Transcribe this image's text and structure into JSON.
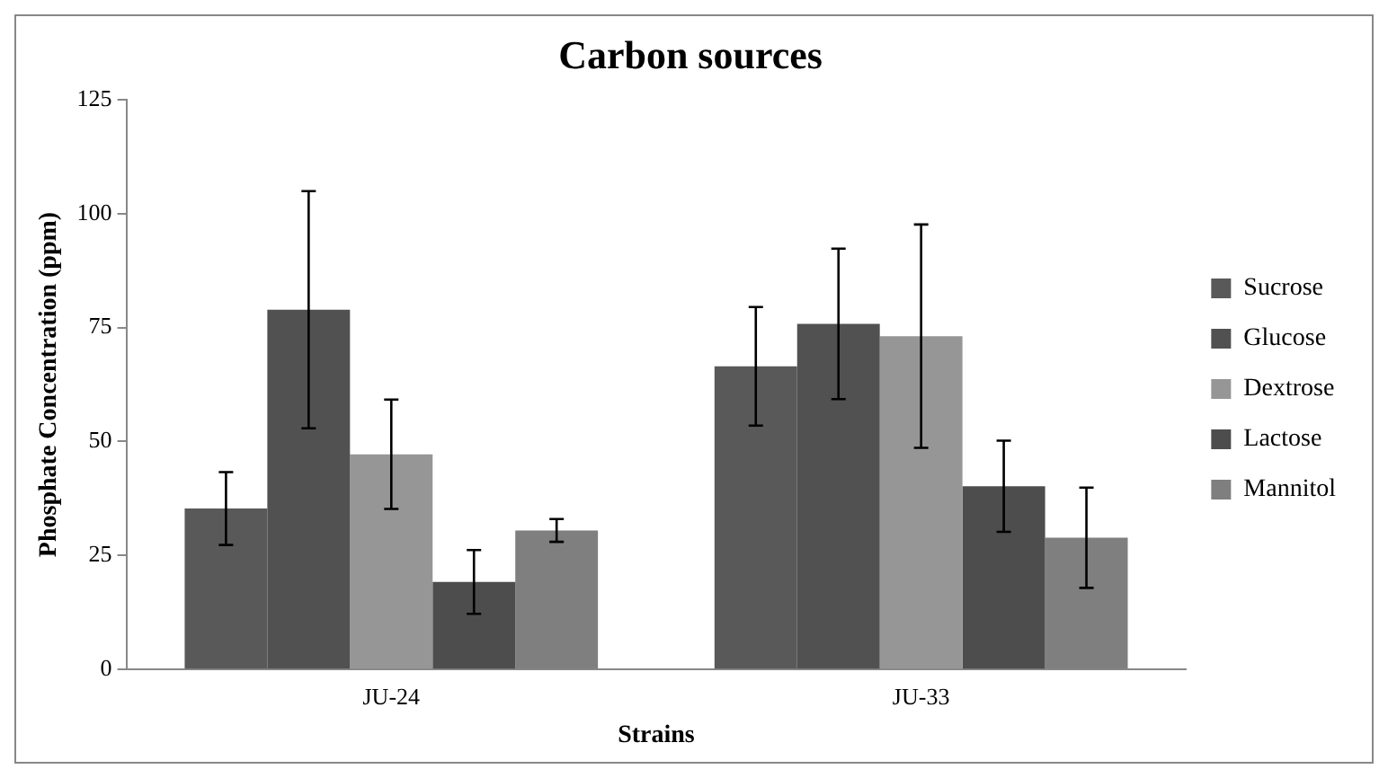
{
  "chart_data": {
    "type": "bar",
    "title": "Carbon sources",
    "xlabel": "Strains",
    "ylabel": "Phosphate Concentration (ppm)",
    "categories": [
      "JU-24",
      "JU-33"
    ],
    "series": [
      {
        "name": "Sucrose",
        "color": "#595959",
        "values": [
          35.3,
          66.5
        ],
        "errors": [
          8,
          13
        ]
      },
      {
        "name": "Glucose",
        "color": "#515151",
        "values": [
          78.9,
          75.8
        ],
        "errors": [
          26,
          16.5
        ]
      },
      {
        "name": "Dextrose",
        "color": "#969696",
        "values": [
          47.2,
          73.1
        ],
        "errors": [
          12,
          24.5
        ]
      },
      {
        "name": "Lactose",
        "color": "#4d4d4d",
        "values": [
          19.2,
          40.2
        ],
        "errors": [
          7,
          10
        ]
      },
      {
        "name": "Mannitol",
        "color": "#7f7f7f",
        "values": [
          30.5,
          28.9
        ],
        "errors": [
          2.5,
          11
        ]
      }
    ],
    "ylim": [
      0,
      125
    ],
    "yticks": [
      0,
      25,
      50,
      75,
      100,
      125
    ],
    "grid": false,
    "legend": "right"
  }
}
